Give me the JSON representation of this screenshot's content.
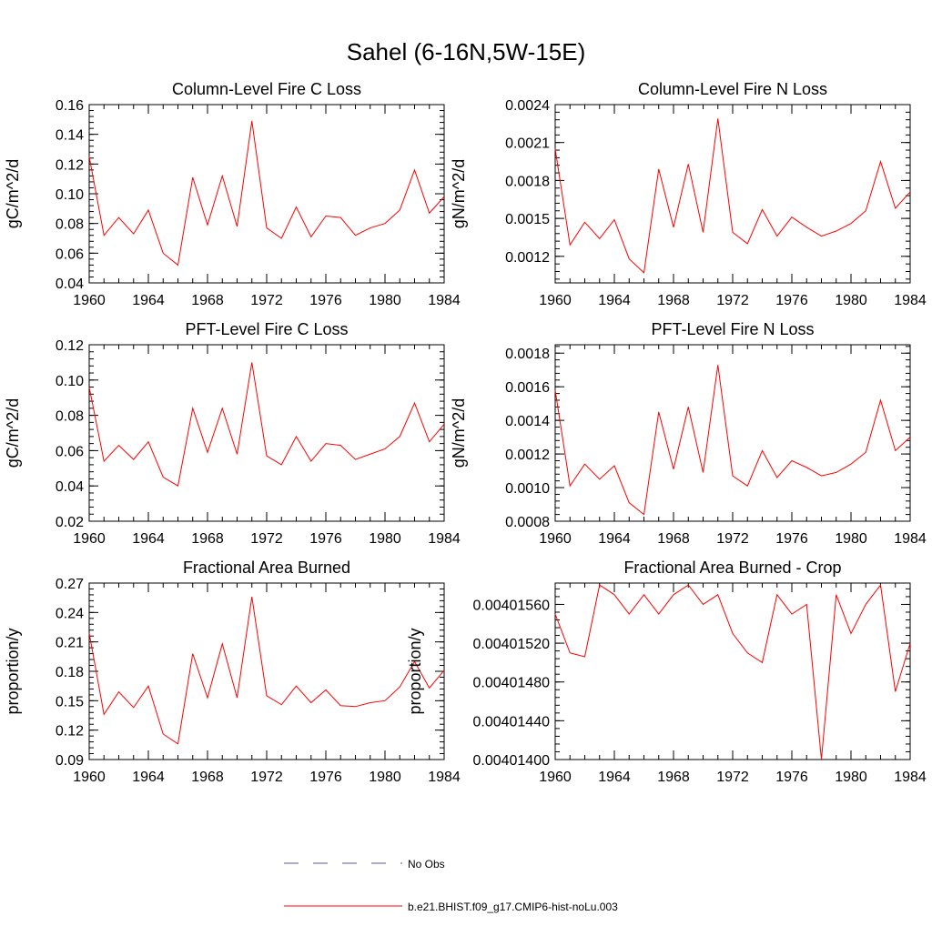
{
  "title": "Sahel (6-16N,5W-15E)",
  "colors": {
    "model": "#ff0000",
    "obs": "#5a5aa0",
    "axis": "#000000"
  },
  "legend": [
    {
      "label": "No Obs",
      "style": "dashed",
      "color": "#5a5aa0"
    },
    {
      "label": "b.e21.BHIST.f09_g17.CMIP6-hist-noLu.003",
      "style": "solid",
      "color": "#ff0000"
    }
  ],
  "chart_data": [
    {
      "type": "line",
      "title": "Column-Level Fire C Loss",
      "ylabel": "gC/m^2/d",
      "xlim": [
        1960,
        1984
      ],
      "ylim": [
        0.04,
        0.16
      ],
      "xticks": [
        "1960",
        "1964",
        "1968",
        "1972",
        "1976",
        "1980",
        "1984"
      ],
      "yticks": [
        "0.04",
        "0.06",
        "0.08",
        "0.10",
        "0.12",
        "0.14",
        "0.16"
      ],
      "x": [
        1960,
        1961,
        1962,
        1963,
        1964,
        1965,
        1966,
        1967,
        1968,
        1969,
        1970,
        1971,
        1972,
        1973,
        1974,
        1975,
        1976,
        1977,
        1978,
        1979,
        1980,
        1981,
        1982,
        1983,
        1984
      ],
      "series": [
        {
          "values": [
            0.125,
            0.072,
            0.084,
            0.073,
            0.089,
            0.06,
            0.052,
            0.111,
            0.079,
            0.112,
            0.078,
            0.149,
            0.077,
            0.07,
            0.091,
            0.071,
            0.085,
            0.084,
            0.072,
            0.077,
            0.08,
            0.089,
            0.116,
            0.087,
            0.098
          ]
        }
      ]
    },
    {
      "type": "line",
      "title": "Column-Level Fire N Loss",
      "ylabel": "gN/m^2/d",
      "xlim": [
        1960,
        1984
      ],
      "ylim": [
        0.00099,
        0.0024
      ],
      "xticks": [
        "1960",
        "1964",
        "1968",
        "1972",
        "1976",
        "1980",
        "1984"
      ],
      "yticks": [
        "0.0012",
        "0.0015",
        "0.0018",
        "0.0021",
        "0.0024"
      ],
      "x": [
        1960,
        1961,
        1962,
        1963,
        1964,
        1965,
        1966,
        1967,
        1968,
        1969,
        1970,
        1971,
        1972,
        1973,
        1974,
        1975,
        1976,
        1977,
        1978,
        1979,
        1980,
        1981,
        1982,
        1983,
        1984
      ],
      "series": [
        {
          "values": [
            0.00205,
            0.00129,
            0.00147,
            0.00134,
            0.00149,
            0.00118,
            0.00107,
            0.00189,
            0.00143,
            0.00193,
            0.00139,
            0.00229,
            0.00139,
            0.0013,
            0.00157,
            0.00136,
            0.00151,
            0.00143,
            0.00136,
            0.0014,
            0.00146,
            0.00156,
            0.00195,
            0.00158,
            0.00171
          ]
        }
      ]
    },
    {
      "type": "line",
      "title": "PFT-Level Fire C Loss",
      "ylabel": "gC/m^2/d",
      "xlim": [
        1960,
        1984
      ],
      "ylim": [
        0.02,
        0.12
      ],
      "xticks": [
        "1960",
        "1964",
        "1968",
        "1972",
        "1976",
        "1980",
        "1984"
      ],
      "yticks": [
        "0.02",
        "0.04",
        "0.06",
        "0.08",
        "0.10",
        "0.12"
      ],
      "x": [
        1960,
        1961,
        1962,
        1963,
        1964,
        1965,
        1966,
        1967,
        1968,
        1969,
        1970,
        1971,
        1972,
        1973,
        1974,
        1975,
        1976,
        1977,
        1978,
        1979,
        1980,
        1981,
        1982,
        1983,
        1984
      ],
      "series": [
        {
          "values": [
            0.096,
            0.054,
            0.063,
            0.055,
            0.065,
            0.045,
            0.04,
            0.084,
            0.059,
            0.084,
            0.058,
            0.11,
            0.057,
            0.052,
            0.068,
            0.054,
            0.064,
            0.063,
            0.055,
            0.058,
            0.061,
            0.068,
            0.087,
            0.065,
            0.075
          ]
        }
      ]
    },
    {
      "type": "line",
      "title": "PFT-Level Fire N Loss",
      "ylabel": "gN/m^2/d",
      "xlim": [
        1960,
        1984
      ],
      "ylim": [
        0.0008,
        0.00185
      ],
      "xticks": [
        "1960",
        "1964",
        "1968",
        "1972",
        "1976",
        "1980",
        "1984"
      ],
      "yticks": [
        "0.0008",
        "0.0010",
        "0.0012",
        "0.0014",
        "0.0016",
        "0.0018"
      ],
      "x": [
        1960,
        1961,
        1962,
        1963,
        1964,
        1965,
        1966,
        1967,
        1968,
        1969,
        1970,
        1971,
        1972,
        1973,
        1974,
        1975,
        1976,
        1977,
        1978,
        1979,
        1980,
        1981,
        1982,
        1983,
        1984
      ],
      "series": [
        {
          "values": [
            0.00158,
            0.00101,
            0.00114,
            0.00105,
            0.00113,
            0.00091,
            0.00084,
            0.00145,
            0.00111,
            0.00148,
            0.00109,
            0.00173,
            0.00107,
            0.00101,
            0.00122,
            0.00106,
            0.00116,
            0.00112,
            0.00107,
            0.00109,
            0.00114,
            0.00121,
            0.00152,
            0.00122,
            0.0013
          ]
        }
      ]
    },
    {
      "type": "line",
      "title": "Fractional Area Burned",
      "ylabel": "proportion/y",
      "xlim": [
        1960,
        1984
      ],
      "ylim": [
        0.09,
        0.27
      ],
      "xticks": [
        "1960",
        "1964",
        "1968",
        "1972",
        "1976",
        "1980",
        "1984"
      ],
      "yticks": [
        "0.09",
        "0.12",
        "0.15",
        "0.18",
        "0.21",
        "0.24",
        "0.27"
      ],
      "x": [
        1960,
        1961,
        1962,
        1963,
        1964,
        1965,
        1966,
        1967,
        1968,
        1969,
        1970,
        1971,
        1972,
        1973,
        1974,
        1975,
        1976,
        1977,
        1978,
        1979,
        1980,
        1981,
        1982,
        1983,
        1984
      ],
      "series": [
        {
          "values": [
            0.219,
            0.136,
            0.159,
            0.143,
            0.165,
            0.116,
            0.106,
            0.198,
            0.153,
            0.208,
            0.153,
            0.256,
            0.155,
            0.146,
            0.165,
            0.148,
            0.161,
            0.145,
            0.144,
            0.148,
            0.15,
            0.164,
            0.19,
            0.163,
            0.181
          ]
        }
      ]
    },
    {
      "type": "line",
      "title": "Fractional Area Burned - Crop",
      "ylabel": "proportion/y",
      "xlim": [
        1960,
        1984
      ],
      "ylim": [
        0.004014,
        0.00401582
      ],
      "xticks": [
        "1960",
        "1964",
        "1968",
        "1972",
        "1976",
        "1980",
        "1984"
      ],
      "yticks": [
        "0.00401400",
        "0.00401440",
        "0.00401480",
        "0.00401520",
        "0.00401560"
      ],
      "x": [
        1960,
        1961,
        1962,
        1963,
        1964,
        1965,
        1966,
        1967,
        1968,
        1969,
        1970,
        1971,
        1972,
        1973,
        1974,
        1975,
        1976,
        1977,
        1978,
        1979,
        1980,
        1981,
        1982,
        1983,
        1984
      ],
      "series": [
        {
          "values": [
            0.0040155,
            0.0040151,
            0.00401506,
            0.0040158,
            0.0040157,
            0.0040155,
            0.0040157,
            0.0040155,
            0.0040157,
            0.0040158,
            0.0040156,
            0.0040157,
            0.0040153,
            0.0040151,
            0.004015,
            0.0040157,
            0.0040155,
            0.0040156,
            0.004014,
            0.0040157,
            0.0040153,
            0.0040156,
            0.0040158,
            0.0040147,
            0.0040152
          ]
        }
      ]
    }
  ]
}
